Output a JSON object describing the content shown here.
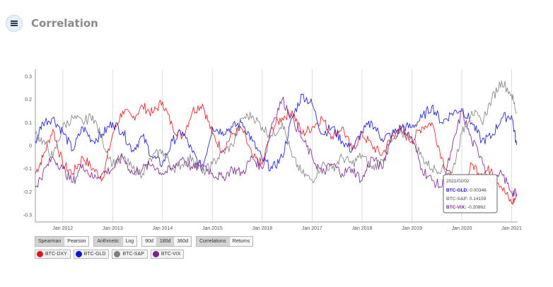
{
  "header": {
    "title": "Correlation",
    "icon": "database-icon"
  },
  "controls": {
    "method": [
      "Spearman",
      "Pearson"
    ],
    "method_active": "Spearman",
    "scale": [
      "Arithmetic",
      "Log"
    ],
    "scale_active": "Arithmetic",
    "window": [
      "90d",
      "180d",
      "360d"
    ],
    "window_active": "180d",
    "view": [
      "Correlations",
      "Returns"
    ],
    "view_active": "Correlations"
  },
  "legend": [
    {
      "label": "BTC-DXY",
      "color": "#e3141d"
    },
    {
      "label": "BTC-GLD",
      "color": "#1212d8"
    },
    {
      "label": "BTC-S&P",
      "color": "#7f7f7f"
    },
    {
      "label": "BTC-VIX",
      "color": "#7a1f8c"
    }
  ],
  "tooltip": {
    "date": "2021/02/02",
    "rows": [
      {
        "label": "BTC-GLD",
        "value": "0.00346",
        "color": "#1212d8"
      },
      {
        "label": "BTC-S&P",
        "value": "0.14159",
        "color": "#7f7f7f"
      },
      {
        "label": "BTC-VIX",
        "value": "-0.20862",
        "color": "#7a1f8c"
      }
    ]
  },
  "chart_data": {
    "type": "line",
    "title": "",
    "xlabel": "",
    "ylabel": "",
    "xlim": [
      2011.45,
      2021.12
    ],
    "ylim": [
      -0.33,
      0.33
    ],
    "yticks": [
      0.3,
      0.2,
      0.1,
      0,
      -0.1,
      -0.2,
      -0.3
    ],
    "ytick_labels": [
      "0.3",
      "0.2",
      "0.1",
      "0",
      "-0.1",
      "-0.2",
      "-0.3"
    ],
    "xticks": [
      2012,
      2013,
      2014,
      2015,
      2016,
      2017,
      2018,
      2019,
      2020,
      2021
    ],
    "xtick_labels": [
      "Jan 2012",
      "Jan 2013",
      "Jan 2014",
      "Jan 2015",
      "Jan 2016",
      "Jan 2017",
      "Jan 2018",
      "Jan 2019",
      "Jan 2020",
      "Jan 2021"
    ],
    "grid": {
      "vertical": true,
      "horizontal": false
    },
    "legend_position": "bottom-left",
    "series": [
      {
        "name": "BTC-DXY",
        "color": "#e3141d",
        "x": [
          2011.45,
          2011.6,
          2011.8,
          2012.0,
          2012.2,
          2012.4,
          2012.6,
          2012.8,
          2013.0,
          2013.2,
          2013.4,
          2013.6,
          2013.8,
          2014.0,
          2014.2,
          2014.4,
          2014.6,
          2014.8,
          2015.0,
          2015.2,
          2015.4,
          2015.6,
          2015.8,
          2016.0,
          2016.2,
          2016.4,
          2016.6,
          2016.8,
          2017.0,
          2017.2,
          2017.4,
          2017.6,
          2017.8,
          2018.0,
          2018.2,
          2018.4,
          2018.6,
          2018.8,
          2019.0,
          2019.2,
          2019.4,
          2019.6,
          2019.8,
          2020.0,
          2020.2,
          2020.4,
          2020.6,
          2020.8,
          2021.0,
          2021.1
        ],
        "y": [
          -0.12,
          -0.05,
          0.07,
          -0.08,
          -0.12,
          -0.05,
          -0.1,
          -0.14,
          0.05,
          0.15,
          0.12,
          0.17,
          0.14,
          0.19,
          0.08,
          0.04,
          0.15,
          0.18,
          0.05,
          -0.02,
          0.05,
          0.07,
          -0.05,
          -0.08,
          0.08,
          0.12,
          0.15,
          0.05,
          0.08,
          0.12,
          0.04,
          0.08,
          -0.02,
          0.05,
          0.0,
          -0.04,
          0.04,
          0.06,
          0.02,
          0.08,
          0.1,
          -0.05,
          -0.15,
          -0.2,
          -0.08,
          -0.12,
          -0.1,
          -0.18,
          -0.25,
          -0.22
        ]
      },
      {
        "name": "BTC-GLD",
        "color": "#1212d8",
        "x": [
          2011.45,
          2011.6,
          2011.8,
          2012.0,
          2012.2,
          2012.4,
          2012.6,
          2012.8,
          2013.0,
          2013.2,
          2013.4,
          2013.6,
          2013.8,
          2014.0,
          2014.2,
          2014.4,
          2014.6,
          2014.8,
          2015.0,
          2015.2,
          2015.4,
          2015.6,
          2015.8,
          2016.0,
          2016.2,
          2016.4,
          2016.6,
          2016.8,
          2017.0,
          2017.2,
          2017.4,
          2017.6,
          2017.8,
          2018.0,
          2018.2,
          2018.4,
          2018.6,
          2018.8,
          2019.0,
          2019.2,
          2019.4,
          2019.6,
          2019.8,
          2020.0,
          2020.2,
          2020.4,
          2020.6,
          2020.8,
          2021.0,
          2021.1
        ],
        "y": [
          0.02,
          0.1,
          0.12,
          0.06,
          -0.02,
          0.08,
          0.02,
          0.05,
          0.1,
          0.06,
          -0.02,
          0.04,
          -0.05,
          -0.08,
          0.02,
          0.06,
          -0.03,
          -0.1,
          0.08,
          0.06,
          0.08,
          0.1,
          0.02,
          -0.06,
          -0.1,
          -0.05,
          0.12,
          0.22,
          0.18,
          0.05,
          0.08,
          0.02,
          -0.02,
          0.06,
          0.1,
          0.03,
          0.05,
          0.08,
          0.08,
          0.12,
          0.17,
          0.1,
          0.14,
          0.16,
          0.1,
          0.02,
          0.04,
          0.12,
          0.13,
          0.003
        ]
      },
      {
        "name": "BTC-S&P",
        "color": "#7f7f7f",
        "x": [
          2011.45,
          2011.6,
          2011.8,
          2012.0,
          2012.2,
          2012.4,
          2012.6,
          2012.8,
          2013.0,
          2013.2,
          2013.4,
          2013.6,
          2013.8,
          2014.0,
          2014.2,
          2014.4,
          2014.6,
          2014.8,
          2015.0,
          2015.2,
          2015.4,
          2015.6,
          2015.8,
          2016.0,
          2016.2,
          2016.4,
          2016.6,
          2016.8,
          2017.0,
          2017.2,
          2017.4,
          2017.6,
          2017.8,
          2018.0,
          2018.2,
          2018.4,
          2018.6,
          2018.8,
          2019.0,
          2019.2,
          2019.4,
          2019.6,
          2019.8,
          2020.0,
          2020.2,
          2020.4,
          2020.6,
          2020.8,
          2021.0,
          2021.1
        ],
        "y": [
          0.05,
          0.02,
          -0.05,
          0.08,
          0.12,
          0.1,
          0.13,
          0.02,
          -0.08,
          -0.05,
          -0.1,
          -0.12,
          -0.05,
          -0.02,
          -0.1,
          -0.08,
          -0.05,
          -0.12,
          -0.08,
          -0.03,
          0.0,
          0.12,
          0.13,
          0.08,
          0.04,
          0.1,
          -0.05,
          -0.12,
          -0.15,
          -0.08,
          -0.1,
          -0.05,
          -0.08,
          -0.04,
          -0.1,
          -0.06,
          0.02,
          0.05,
          0.04,
          -0.05,
          -0.1,
          -0.1,
          -0.12,
          0.05,
          0.15,
          0.1,
          0.2,
          0.28,
          0.22,
          0.14
        ]
      },
      {
        "name": "BTC-VIX",
        "color": "#7a1f8c",
        "x": [
          2011.45,
          2011.6,
          2011.8,
          2012.0,
          2012.2,
          2012.4,
          2012.6,
          2012.8,
          2013.0,
          2013.2,
          2013.4,
          2013.6,
          2013.8,
          2014.0,
          2014.2,
          2014.4,
          2014.6,
          2014.8,
          2015.0,
          2015.2,
          2015.4,
          2015.6,
          2015.8,
          2016.0,
          2016.2,
          2016.4,
          2016.6,
          2016.8,
          2017.0,
          2017.2,
          2017.4,
          2017.6,
          2017.8,
          2018.0,
          2018.2,
          2018.4,
          2018.6,
          2018.8,
          2019.0,
          2019.2,
          2019.4,
          2019.6,
          2019.8,
          2020.0,
          2020.2,
          2020.4,
          2020.6,
          2020.8,
          2021.0,
          2021.1
        ],
        "y": [
          -0.18,
          -0.12,
          -0.05,
          -0.1,
          -0.16,
          -0.08,
          -0.14,
          -0.12,
          -0.1,
          -0.05,
          -0.12,
          -0.1,
          -0.08,
          -0.12,
          -0.1,
          -0.05,
          -0.1,
          -0.08,
          -0.12,
          -0.14,
          -0.1,
          -0.12,
          -0.05,
          -0.1,
          0.1,
          0.2,
          0.12,
          0.03,
          -0.05,
          -0.12,
          -0.08,
          -0.12,
          -0.1,
          -0.15,
          -0.05,
          -0.1,
          0.05,
          0.08,
          0.03,
          -0.1,
          -0.15,
          -0.18,
          -0.02,
          0.15,
          0.02,
          -0.05,
          -0.18,
          -0.12,
          -0.2,
          -0.21
        ]
      }
    ]
  }
}
